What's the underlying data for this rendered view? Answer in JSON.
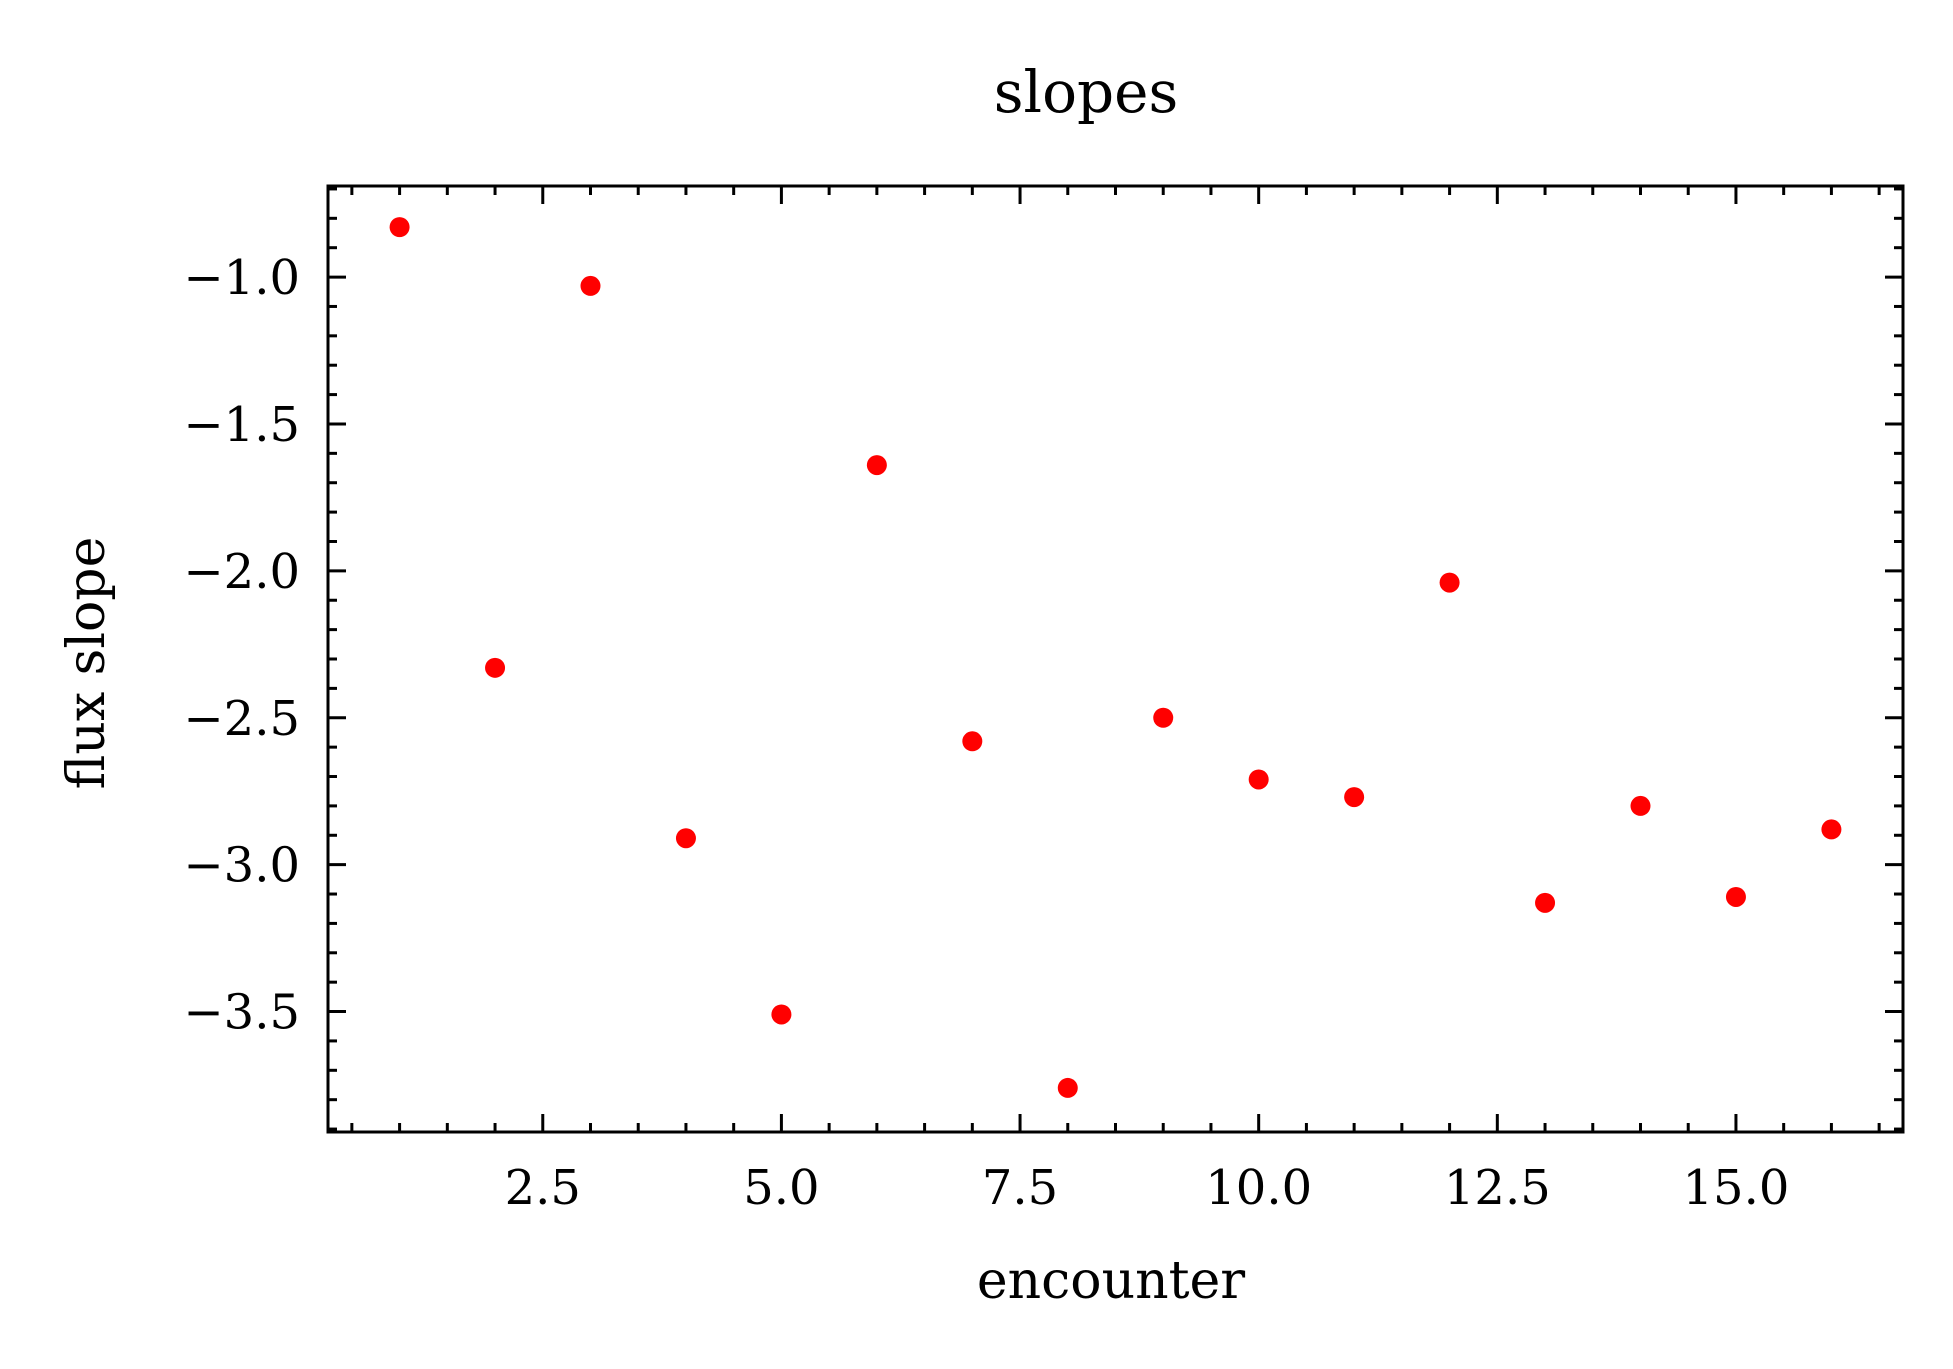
{
  "chart_data": {
    "type": "scatter",
    "title": "slopes",
    "xlabel": "encounter",
    "ylabel": "flux slope",
    "xlim": [
      0.25,
      16.75
    ],
    "ylim": [
      -3.91,
      -0.69
    ],
    "x_ticks": [
      2.5,
      5.0,
      7.5,
      10.0,
      12.5,
      15.0
    ],
    "x_tick_labels": [
      "2.5",
      "5.0",
      "7.5",
      "10.0",
      "12.5",
      "15.0"
    ],
    "y_ticks": [
      -1.0,
      -1.5,
      -2.0,
      -2.5,
      -3.0,
      -3.5
    ],
    "y_tick_labels": [
      "−1.0",
      "−1.5",
      "−2.0",
      "−2.5",
      "−3.0",
      "−3.5"
    ],
    "grid": false,
    "legend": "none",
    "series": [
      {
        "color": "#ff0000",
        "x": [
          1,
          2,
          3,
          4,
          5,
          6,
          7,
          8,
          9,
          10,
          11,
          12,
          13,
          14,
          15,
          16
        ],
        "y": [
          -0.83,
          -2.33,
          -1.03,
          -2.91,
          -3.51,
          -1.64,
          -2.58,
          -3.76,
          -2.5,
          -2.71,
          -2.77,
          -2.04,
          -3.13,
          -2.8,
          -3.11,
          -2.88
        ]
      }
    ]
  }
}
